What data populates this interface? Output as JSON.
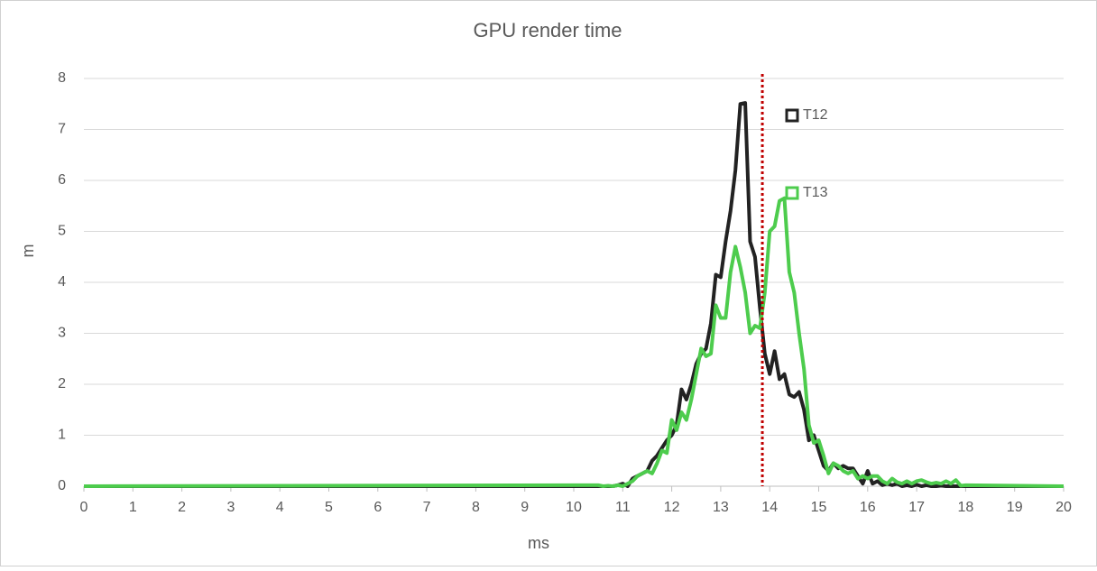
{
  "chart_data": {
    "type": "line",
    "title": "GPU render time",
    "x_label": "ms",
    "y_label": "m",
    "x": [
      0,
      10.5,
      10.6,
      10.7,
      10.8,
      10.9,
      11.0,
      11.1,
      11.2,
      11.3,
      11.4,
      11.5,
      11.6,
      11.7,
      11.8,
      11.9,
      12.0,
      12.1,
      12.2,
      12.3,
      12.4,
      12.5,
      12.6,
      12.7,
      12.8,
      12.9,
      13.0,
      13.1,
      13.2,
      13.3,
      13.4,
      13.5,
      13.6,
      13.7,
      13.8,
      13.9,
      14.0,
      14.1,
      14.2,
      14.3,
      14.4,
      14.5,
      14.6,
      14.7,
      14.8,
      14.9,
      15.0,
      15.1,
      15.2,
      15.3,
      15.4,
      15.5,
      15.6,
      15.7,
      15.8,
      15.9,
      16.0,
      16.1,
      16.2,
      16.3,
      16.4,
      16.5,
      16.6,
      16.7,
      16.8,
      16.9,
      17.0,
      17.1,
      17.2,
      17.3,
      17.4,
      17.5,
      17.6,
      17.7,
      17.8,
      17.9,
      18.0,
      20
    ],
    "series": [
      {
        "name": "T12",
        "color": "#222222",
        "values": [
          0,
          0,
          0,
          0,
          0,
          0.02,
          0.05,
          0,
          0.15,
          0.2,
          0.25,
          0.3,
          0.5,
          0.6,
          0.75,
          0.9,
          1.0,
          1.2,
          1.9,
          1.7,
          2.0,
          2.4,
          2.6,
          2.7,
          3.2,
          4.15,
          4.1,
          4.8,
          5.4,
          6.2,
          7.5,
          7.52,
          4.8,
          4.5,
          3.5,
          2.6,
          2.2,
          2.65,
          2.1,
          2.2,
          1.8,
          1.75,
          1.85,
          1.5,
          0.9,
          1.0,
          0.7,
          0.4,
          0.3,
          0.45,
          0.35,
          0.4,
          0.35,
          0.35,
          0.2,
          0.05,
          0.3,
          0.05,
          0.1,
          0.02,
          0.05,
          0.02,
          0.05,
          0,
          0.02,
          0,
          0.03,
          0,
          0.02,
          0,
          0,
          0.01,
          0,
          0,
          0,
          0,
          0,
          0
        ]
      },
      {
        "name": "T13",
        "color": "#4dcc4d",
        "values": [
          0,
          0.02,
          0,
          0.01,
          0,
          0.02,
          0,
          0.05,
          0.1,
          0.2,
          0.25,
          0.3,
          0.25,
          0.45,
          0.7,
          0.65,
          1.3,
          1.1,
          1.45,
          1.3,
          1.7,
          2.2,
          2.7,
          2.55,
          2.6,
          3.55,
          3.3,
          3.3,
          4.2,
          4.7,
          4.3,
          3.8,
          3.0,
          3.15,
          3.1,
          3.8,
          5.0,
          5.1,
          5.6,
          5.65,
          4.2,
          3.8,
          3.0,
          2.3,
          1.2,
          0.85,
          0.9,
          0.6,
          0.25,
          0.45,
          0.4,
          0.3,
          0.25,
          0.3,
          0.15,
          0.2,
          0.15,
          0.2,
          0.2,
          0.1,
          0.05,
          0.15,
          0.08,
          0.05,
          0.1,
          0.05,
          0.1,
          0.12,
          0.08,
          0.05,
          0.07,
          0.05,
          0.1,
          0.05,
          0.12,
          0.01,
          0.02,
          0
        ]
      }
    ],
    "vline": {
      "value": 13.85,
      "color": "#c00000"
    },
    "xlim": [
      0,
      20
    ],
    "xticks": [
      0,
      1,
      2,
      3,
      4,
      5,
      6,
      7,
      8,
      9,
      10,
      11,
      12,
      13,
      14,
      15,
      16,
      17,
      18,
      19,
      20
    ],
    "ylim": [
      0,
      8
    ],
    "yticks": [
      0,
      1,
      2,
      3,
      4,
      5,
      6,
      7,
      8
    ],
    "grid": true
  }
}
